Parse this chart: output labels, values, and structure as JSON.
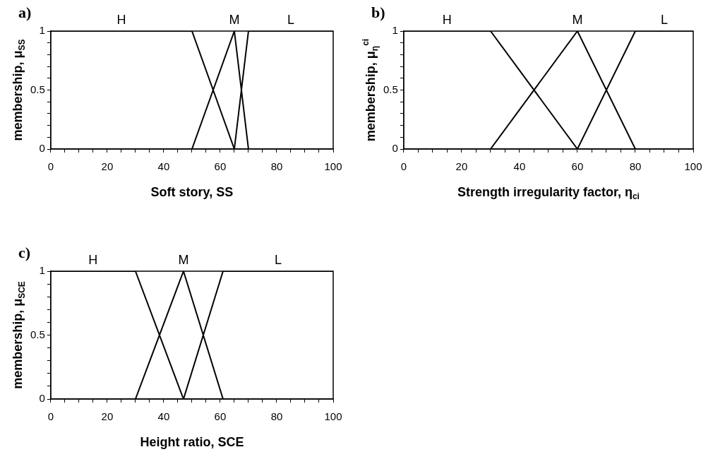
{
  "chart_data": [
    {
      "type": "line",
      "title": "a)",
      "xlabel": "Soft story, SS",
      "ylabel": "membership, μ$_{SS}$",
      "xlim": [
        0,
        100
      ],
      "ylim": [
        0,
        1
      ],
      "xticks": [
        0,
        {
          "value": 5,
          "label": null
        },
        {
          "value": 10,
          "label": null
        },
        {
          "value": 15,
          "label": null
        },
        20,
        {
          "value": 25,
          "label": null
        },
        {
          "value": 30,
          "label": null
        },
        {
          "value": 35,
          "label": null
        },
        40,
        {
          "value": 45,
          "label": null
        },
        {
          "value": 50,
          "label": null
        },
        {
          "value": 55,
          "label": null
        },
        60,
        {
          "value": 65,
          "label": null
        },
        {
          "value": 70,
          "label": null
        },
        {
          "value": 75,
          "label": null
        },
        80,
        {
          "value": 85,
          "label": null
        },
        {
          "value": 90,
          "label": null
        },
        {
          "value": 95,
          "label": null
        },
        100
      ],
      "yticks": [
        0,
        {
          "value": 0.1,
          "label": null
        },
        {
          "value": 0.2,
          "label": null
        },
        {
          "value": 0.3,
          "label": null
        },
        {
          "value": 0.4,
          "label": null
        },
        0.5,
        {
          "value": 0.6,
          "label": null
        },
        {
          "value": 0.7,
          "label": null
        },
        {
          "value": 0.8,
          "label": null
        },
        {
          "value": 0.9,
          "label": null
        },
        1
      ],
      "grid": false,
      "series": [
        {
          "name": "H",
          "color": "#000000",
          "x": [
            0,
            50,
            65
          ],
          "values": [
            1,
            1,
            0
          ]
        },
        {
          "name": "M",
          "color": "#000000",
          "x": [
            50,
            65,
            70
          ],
          "values": [
            0,
            1,
            0
          ]
        },
        {
          "name": "L",
          "color": "#000000",
          "x": [
            65,
            70,
            100
          ],
          "values": [
            0,
            1,
            1
          ]
        }
      ]
    },
    {
      "type": "line",
      "title": "b)",
      "xlabel": "Strength irregularity factor, η$_{ci}$",
      "ylabel": "membership, μ$_{η}$$^{ci}$",
      "xlim": [
        0,
        100
      ],
      "ylim": [
        0,
        1
      ],
      "xticks": [
        0,
        {
          "value": 5,
          "label": null
        },
        {
          "value": 10,
          "label": null
        },
        {
          "value": 15,
          "label": null
        },
        20,
        {
          "value": 25,
          "label": null
        },
        {
          "value": 30,
          "label": null
        },
        {
          "value": 35,
          "label": null
        },
        40,
        {
          "value": 45,
          "label": null
        },
        {
          "value": 50,
          "label": null
        },
        {
          "value": 55,
          "label": null
        },
        60,
        {
          "value": 65,
          "label": null
        },
        {
          "value": 70,
          "label": null
        },
        {
          "value": 75,
          "label": null
        },
        80,
        {
          "value": 85,
          "label": null
        },
        {
          "value": 90,
          "label": null
        },
        {
          "value": 95,
          "label": null
        },
        100
      ],
      "yticks": [
        0,
        {
          "value": 0.1,
          "label": null
        },
        {
          "value": 0.2,
          "label": null
        },
        {
          "value": 0.3,
          "label": null
        },
        {
          "value": 0.4,
          "label": null
        },
        0.5,
        {
          "value": 0.6,
          "label": null
        },
        {
          "value": 0.7,
          "label": null
        },
        {
          "value": 0.8,
          "label": null
        },
        {
          "value": 0.9,
          "label": null
        },
        1
      ],
      "grid": false,
      "series": [
        {
          "name": "H",
          "color": "#000000",
          "x": [
            0,
            30,
            60
          ],
          "values": [
            1,
            1,
            0
          ]
        },
        {
          "name": "M",
          "color": "#000000",
          "x": [
            30,
            60,
            80
          ],
          "values": [
            0,
            1,
            0
          ]
        },
        {
          "name": "L",
          "color": "#000000",
          "x": [
            60,
            80,
            100
          ],
          "values": [
            0,
            1,
            1
          ]
        }
      ]
    },
    {
      "type": "line",
      "title": "c)",
      "xlabel": "Height ratio, SCE",
      "ylabel": "membership, μ$_{SCE}$",
      "xlim": [
        0,
        100
      ],
      "ylim": [
        0,
        1
      ],
      "xticks": [
        0,
        {
          "value": 5,
          "label": null
        },
        {
          "value": 10,
          "label": null
        },
        {
          "value": 15,
          "label": null
        },
        20,
        {
          "value": 25,
          "label": null
        },
        {
          "value": 30,
          "label": null
        },
        {
          "value": 35,
          "label": null
        },
        40,
        {
          "value": 45,
          "label": null
        },
        {
          "value": 50,
          "label": null
        },
        {
          "value": 55,
          "label": null
        },
        60,
        {
          "value": 65,
          "label": null
        },
        {
          "value": 70,
          "label": null
        },
        {
          "value": 75,
          "label": null
        },
        80,
        {
          "value": 85,
          "label": null
        },
        {
          "value": 90,
          "label": null
        },
        {
          "value": 95,
          "label": null
        },
        100
      ],
      "yticks": [
        0,
        {
          "value": 0.1,
          "label": null
        },
        {
          "value": 0.2,
          "label": null
        },
        {
          "value": 0.3,
          "label": null
        },
        {
          "value": 0.4,
          "label": null
        },
        0.5,
        {
          "value": 0.6,
          "label": null
        },
        {
          "value": 0.7,
          "label": null
        },
        {
          "value": 0.8,
          "label": null
        },
        {
          "value": 0.9,
          "label": null
        },
        1
      ],
      "grid": false,
      "series": [
        {
          "name": "H",
          "color": "#000000",
          "x": [
            0,
            30,
            47
          ],
          "values": [
            1,
            1,
            0
          ]
        },
        {
          "name": "M",
          "color": "#000000",
          "x": [
            30,
            47,
            61
          ],
          "values": [
            0,
            1,
            0
          ]
        },
        {
          "name": "L",
          "color": "#000000",
          "x": [
            47,
            61,
            100
          ],
          "values": [
            0,
            1,
            1
          ]
        }
      ]
    }
  ]
}
